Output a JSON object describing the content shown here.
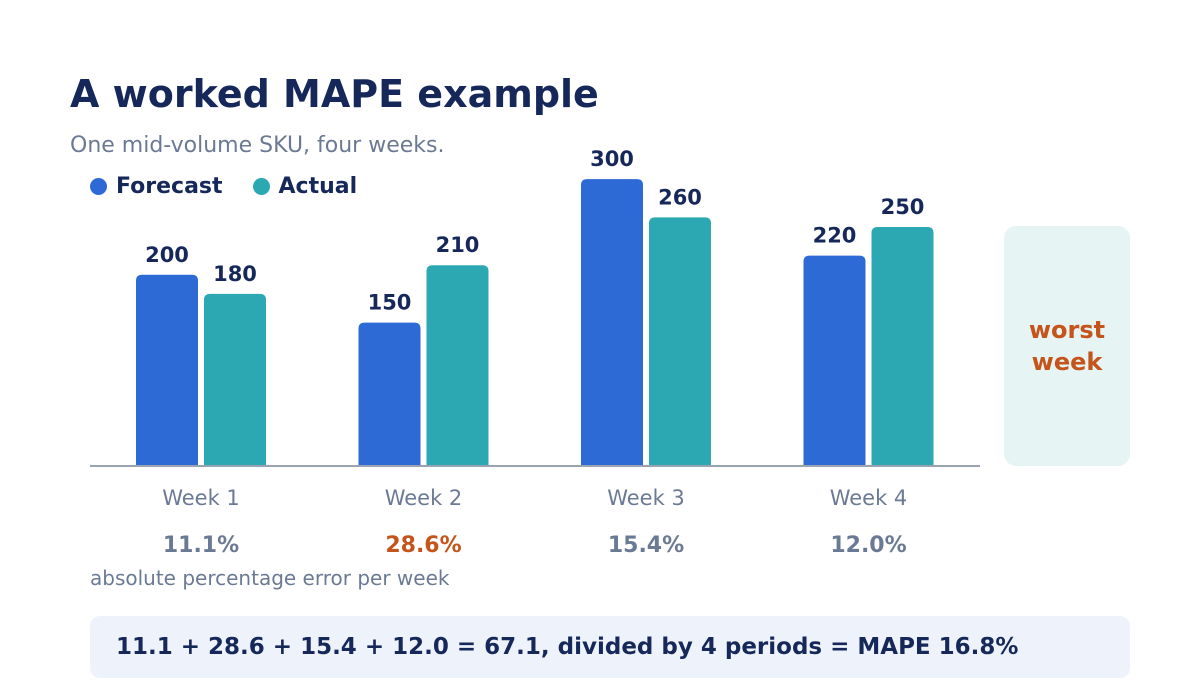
{
  "title": "A worked MAPE example",
  "subtitle": "One mid-volume SKU, four weeks.",
  "legend": [
    {
      "label": "Forecast",
      "color": "#2e6ad6"
    },
    {
      "label": "Actual",
      "color": "#2ba8b2"
    }
  ],
  "chart_data": {
    "type": "bar",
    "title": "A worked MAPE example",
    "subtitle": "One mid-volume SKU, four weeks.",
    "categories": [
      "Week 1",
      "Week 2",
      "Week 3",
      "Week 4"
    ],
    "series": [
      {
        "name": "Forecast",
        "color": "#2e6ad6",
        "values": [
          200,
          150,
          300,
          220
        ]
      },
      {
        "name": "Actual",
        "color": "#2ba8b2",
        "values": [
          180,
          210,
          260,
          250
        ]
      }
    ],
    "errors": [
      "11.1%",
      "28.6%",
      "15.4%",
      "12.0%"
    ],
    "worst_index": 1,
    "ylim": [
      0,
      320
    ],
    "grid": false,
    "legend_position": "top-left"
  },
  "colors": {
    "title": "#16285a",
    "muted": "#6b7a94",
    "highlight": "#c4541a",
    "axis": "#9aa3b2"
  },
  "worst_panel": {
    "label": "worst week"
  },
  "error_caption": "absolute percentage error per week",
  "formula": "11.1 + 28.6 + 15.4 + 12.0 = 67.1, divided by 4 periods = MAPE 16.8%"
}
